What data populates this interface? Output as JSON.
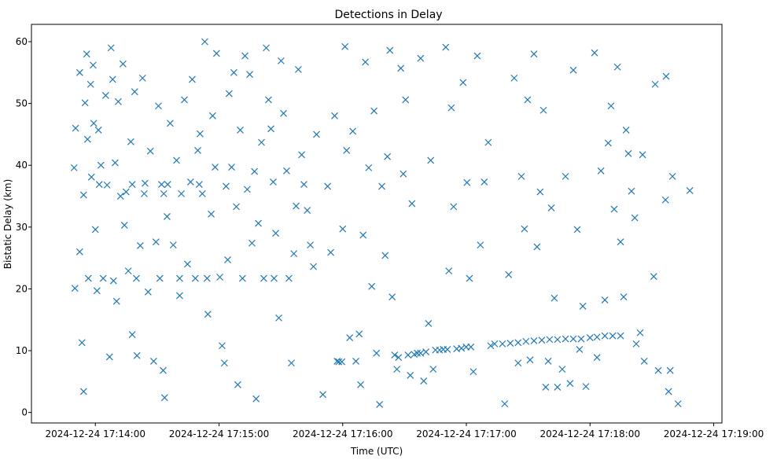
{
  "chart_data": {
    "type": "scatter",
    "title": "Detections in Delay",
    "xlabel": "Time (UTC)",
    "ylabel": "Bistatic Delay (km)",
    "x_units": "seconds since 2024-12-24 17:14:00 UTC",
    "xlim": [
      -31,
      304
    ],
    "ylim": [
      -1.7,
      62.8
    ],
    "grid": false,
    "marker": "x",
    "color": "#1f77b4",
    "x_ticks": [
      {
        "value": 0,
        "label": "2024-12-24 17:14:00"
      },
      {
        "value": 60,
        "label": "2024-12-24 17:15:00"
      },
      {
        "value": 120,
        "label": "2024-12-24 17:16:00"
      },
      {
        "value": 180,
        "label": "2024-12-24 17:17:00"
      },
      {
        "value": 240,
        "label": "2024-12-24 17:18:00"
      },
      {
        "value": 300,
        "label": "2024-12-24 17:19:00"
      }
    ],
    "y_ticks": [
      {
        "value": 0,
        "label": "0"
      },
      {
        "value": 10,
        "label": "10"
      },
      {
        "value": 20,
        "label": "20"
      },
      {
        "value": 30,
        "label": "30"
      },
      {
        "value": 40,
        "label": "40"
      },
      {
        "value": 50,
        "label": "50"
      },
      {
        "value": 60,
        "label": "60"
      }
    ],
    "points": [
      [
        -10.3,
        39.6
      ],
      [
        -9.9,
        20.1
      ],
      [
        -9.6,
        46.0
      ],
      [
        -7.6,
        55.0
      ],
      [
        -7.6,
        26.0
      ],
      [
        -6.5,
        11.3
      ],
      [
        -5.7,
        3.4
      ],
      [
        -5.7,
        35.2
      ],
      [
        -5.0,
        50.1
      ],
      [
        -4.2,
        58.0
      ],
      [
        -3.8,
        44.2
      ],
      [
        -3.4,
        21.7
      ],
      [
        -2.3,
        53.1
      ],
      [
        -1.9,
        38.1
      ],
      [
        -1.1,
        56.2
      ],
      [
        -0.8,
        46.8
      ],
      [
        0,
        29.6
      ],
      [
        0.8,
        19.7
      ],
      [
        1.5,
        45.7
      ],
      [
        2.7,
        40.0
      ],
      [
        3.8,
        21.7
      ],
      [
        5.0,
        51.3
      ],
      [
        5.7,
        36.8
      ],
      [
        6.9,
        9.0
      ],
      [
        7.6,
        59.0
      ],
      [
        8.4,
        53.9
      ],
      [
        8.8,
        21.3
      ],
      [
        9.6,
        40.4
      ],
      [
        10.3,
        18.0
      ],
      [
        11.1,
        50.3
      ],
      [
        12.2,
        35.0
      ],
      [
        13.4,
        56.4
      ],
      [
        14.1,
        30.3
      ],
      [
        14.9,
        35.7
      ],
      [
        16.0,
        22.9
      ],
      [
        17.2,
        43.8
      ],
      [
        17.9,
        12.6
      ],
      [
        19.1,
        51.9
      ],
      [
        20.2,
        9.2
      ],
      [
        21.8,
        27.0
      ],
      [
        22.9,
        54.1
      ],
      [
        24.1,
        37.1
      ],
      [
        25.6,
        19.5
      ],
      [
        26.7,
        42.3
      ],
      [
        28.3,
        8.3
      ],
      [
        29.4,
        27.6
      ],
      [
        30.6,
        49.6
      ],
      [
        32.1,
        36.9
      ],
      [
        32.9,
        6.8
      ],
      [
        33.6,
        2.4
      ],
      [
        34.8,
        31.7
      ],
      [
        36.3,
        46.8
      ],
      [
        37.8,
        27.1
      ],
      [
        39.4,
        40.8
      ],
      [
        40.9,
        18.9
      ],
      [
        41.7,
        35.4
      ],
      [
        43.2,
        50.6
      ],
      [
        44.7,
        24.0
      ],
      [
        46.2,
        37.3
      ],
      [
        47.0,
        53.9
      ],
      [
        48.5,
        21.7
      ],
      [
        49.7,
        42.4
      ],
      [
        50.8,
        45.1
      ],
      [
        51.9,
        35.4
      ],
      [
        53.1,
        60.0
      ],
      [
        54.6,
        15.9
      ],
      [
        56.2,
        32.1
      ],
      [
        56.9,
        48.0
      ],
      [
        58.1,
        39.7
      ],
      [
        58.8,
        58.1
      ],
      [
        60.4,
        21.9
      ],
      [
        61.5,
        10.8
      ],
      [
        62.6,
        8.0
      ],
      [
        63.4,
        36.6
      ],
      [
        64.2,
        24.7
      ],
      [
        64.9,
        51.6
      ],
      [
        66.1,
        39.7
      ],
      [
        67.2,
        55.0
      ],
      [
        68.4,
        33.3
      ],
      [
        69.1,
        4.5
      ],
      [
        70.3,
        45.7
      ],
      [
        71.4,
        21.7
      ],
      [
        72.6,
        57.7
      ],
      [
        73.7,
        36.1
      ],
      [
        74.9,
        54.7
      ],
      [
        76.0,
        27.4
      ],
      [
        77.2,
        39.0
      ],
      [
        78.0,
        2.2
      ],
      [
        79.1,
        30.6
      ],
      [
        80.6,
        43.7
      ],
      [
        81.7,
        21.7
      ],
      [
        82.9,
        59.0
      ],
      [
        84.0,
        50.6
      ],
      [
        85.2,
        45.9
      ],
      [
        86.3,
        37.3
      ],
      [
        87.5,
        29.0
      ],
      [
        89.0,
        15.3
      ],
      [
        90.1,
        56.9
      ],
      [
        91.3,
        48.4
      ],
      [
        92.8,
        39.1
      ],
      [
        93.9,
        21.7
      ],
      [
        95.1,
        8.0
      ],
      [
        96.3,
        25.7
      ],
      [
        97.4,
        33.4
      ],
      [
        98.5,
        55.5
      ],
      [
        100.1,
        41.7
      ],
      [
        101.2,
        36.9
      ],
      [
        102.8,
        32.7
      ],
      [
        104.3,
        27.1
      ],
      [
        105.8,
        23.6
      ],
      [
        107.3,
        45.0
      ],
      [
        1.9,
        36.9
      ],
      [
        17.9,
        36.9
      ],
      [
        35.1,
        36.9
      ],
      [
        50.4,
        36.9
      ],
      [
        23.7,
        35.4
      ],
      [
        33.2,
        35.4
      ],
      [
        19.9,
        21.7
      ],
      [
        31.3,
        21.7
      ],
      [
        40.9,
        21.7
      ],
      [
        54.2,
        21.7
      ],
      [
        86.7,
        21.7
      ],
      [
        110.4,
        2.9
      ],
      [
        112.7,
        36.6
      ],
      [
        114.2,
        25.9
      ],
      [
        116.1,
        48.0
      ],
      [
        117.3,
        8.3
      ],
      [
        118.1,
        8.2
      ],
      [
        119.6,
        8.2
      ],
      [
        120.0,
        29.7
      ],
      [
        121.1,
        59.2
      ],
      [
        121.9,
        42.4
      ],
      [
        123.4,
        12.1
      ],
      [
        124.9,
        45.5
      ],
      [
        126.4,
        8.3
      ],
      [
        128.0,
        12.7
      ],
      [
        128.7,
        4.5
      ],
      [
        129.9,
        28.7
      ],
      [
        131.0,
        56.7
      ],
      [
        132.6,
        39.6
      ],
      [
        134.1,
        20.4
      ],
      [
        135.2,
        48.8
      ],
      [
        136.4,
        9.6
      ],
      [
        137.9,
        1.3
      ],
      [
        139.0,
        36.6
      ],
      [
        140.6,
        25.4
      ],
      [
        141.7,
        41.4
      ],
      [
        142.9,
        58.6
      ],
      [
        144.0,
        18.7
      ],
      [
        145.2,
        9.3
      ],
      [
        146.3,
        7.0
      ],
      [
        147.1,
        8.9
      ],
      [
        148.2,
        55.7
      ],
      [
        149.4,
        38.6
      ],
      [
        150.5,
        50.6
      ],
      [
        151.7,
        9.3
      ],
      [
        152.8,
        6.0
      ],
      [
        153.6,
        33.8
      ],
      [
        154.7,
        9.4
      ],
      [
        156.2,
        9.6
      ],
      [
        157.8,
        9.6
      ],
      [
        157.8,
        57.3
      ],
      [
        159.3,
        5.1
      ],
      [
        160.4,
        9.8
      ],
      [
        161.6,
        14.4
      ],
      [
        162.7,
        40.8
      ],
      [
        163.9,
        7.0
      ],
      [
        165.0,
        10.1
      ],
      [
        167.0,
        10.1
      ],
      [
        168.8,
        10.2
      ],
      [
        170.8,
        10.2
      ],
      [
        170.0,
        59.1
      ],
      [
        171.5,
        22.9
      ],
      [
        172.7,
        49.3
      ],
      [
        173.8,
        33.3
      ],
      [
        175.3,
        10.3
      ],
      [
        177.6,
        10.4
      ],
      [
        179.9,
        10.6
      ],
      [
        182.2,
        10.6
      ],
      [
        178.4,
        53.4
      ],
      [
        180.3,
        37.2
      ],
      [
        181.5,
        21.7
      ],
      [
        183.4,
        6.6
      ],
      [
        185.3,
        57.7
      ],
      [
        186.8,
        27.1
      ],
      [
        188.7,
        37.3
      ],
      [
        190.6,
        43.7
      ],
      [
        191.8,
        10.8
      ],
      [
        193.7,
        11.1
      ],
      [
        197.5,
        11.1
      ],
      [
        201.3,
        11.2
      ],
      [
        205.1,
        11.3
      ],
      [
        208.9,
        11.5
      ],
      [
        212.8,
        11.6
      ],
      [
        216.6,
        11.7
      ],
      [
        220.4,
        11.8
      ],
      [
        224.2,
        11.8
      ],
      [
        228.1,
        11.9
      ],
      [
        231.9,
        11.9
      ],
      [
        235.7,
        11.9
      ],
      [
        198.6,
        1.4
      ],
      [
        200.5,
        22.3
      ],
      [
        203.2,
        54.1
      ],
      [
        205.1,
        8.0
      ],
      [
        206.7,
        38.2
      ],
      [
        208.2,
        29.7
      ],
      [
        209.7,
        50.6
      ],
      [
        210.9,
        8.5
      ],
      [
        212.8,
        58.0
      ],
      [
        214.3,
        26.8
      ],
      [
        215.8,
        35.7
      ],
      [
        217.4,
        48.9
      ],
      [
        218.5,
        4.1
      ],
      [
        219.7,
        8.3
      ],
      [
        221.2,
        33.1
      ],
      [
        222.7,
        18.5
      ],
      [
        224.2,
        4.1
      ],
      [
        226.5,
        7.0
      ],
      [
        228.1,
        38.2
      ],
      [
        230.3,
        4.7
      ],
      [
        231.9,
        55.4
      ],
      [
        233.8,
        29.6
      ],
      [
        234.9,
        10.2
      ],
      [
        236.5,
        17.2
      ],
      [
        238.0,
        4.2
      ],
      [
        240.0,
        12.1
      ],
      [
        243.4,
        12.2
      ],
      [
        247.2,
        12.4
      ],
      [
        251.0,
        12.4
      ],
      [
        254.8,
        12.4
      ],
      [
        242.2,
        58.2
      ],
      [
        243.4,
        8.9
      ],
      [
        245.3,
        39.1
      ],
      [
        247.2,
        18.2
      ],
      [
        248.8,
        43.6
      ],
      [
        250.2,
        49.6
      ],
      [
        251.7,
        32.9
      ],
      [
        253.3,
        55.9
      ],
      [
        254.8,
        27.6
      ],
      [
        256.3,
        18.7
      ],
      [
        257.5,
        45.7
      ],
      [
        258.6,
        41.9
      ],
      [
        260.1,
        35.8
      ],
      [
        261.7,
        31.5
      ],
      [
        262.4,
        11.1
      ],
      [
        264.3,
        12.9
      ],
      [
        265.5,
        41.7
      ],
      [
        266.3,
        8.3
      ],
      [
        270.9,
        22.0
      ],
      [
        271.6,
        53.1
      ],
      [
        273.1,
        6.8
      ],
      [
        276.6,
        34.4
      ],
      [
        278.1,
        3.4
      ],
      [
        278.9,
        6.8
      ],
      [
        280.0,
        38.2
      ],
      [
        282.7,
        1.4
      ],
      [
        288.4,
        35.9
      ],
      [
        276.9,
        54.4
      ]
    ]
  }
}
